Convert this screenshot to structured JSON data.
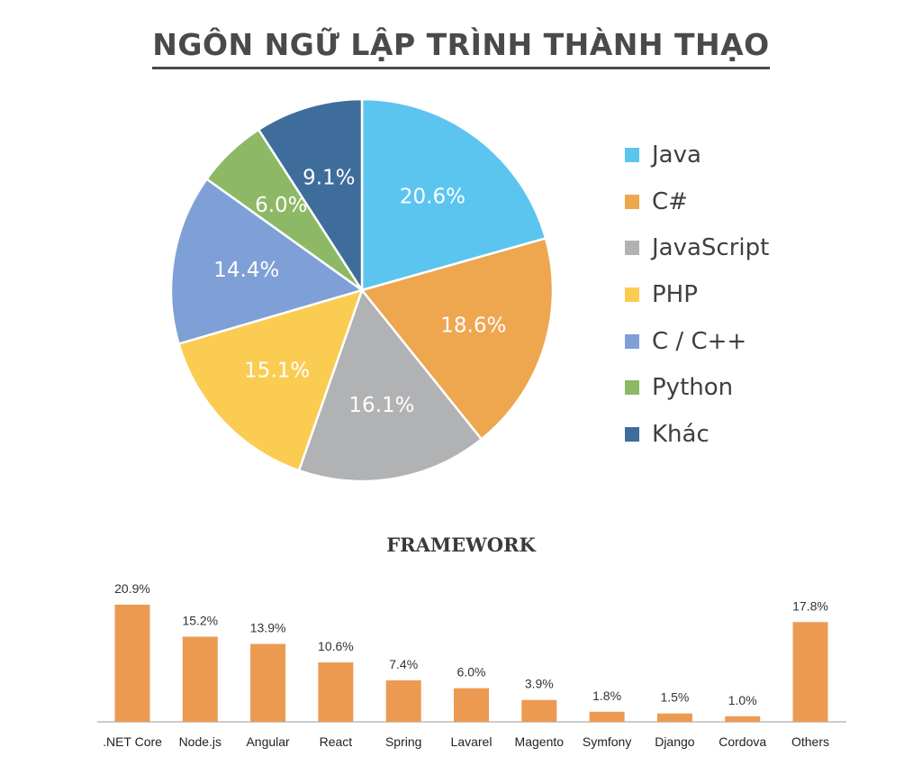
{
  "title": "NGÔN NGỮ LẬP TRÌNH THÀNH THẠO",
  "chart_data": [
    {
      "type": "pie",
      "title": "NGÔN NGỮ LẬP TRÌNH THÀNH THẠO",
      "legend_position": "right",
      "slices": [
        {
          "label": "Java",
          "value": 20.6,
          "display": "20.6%",
          "color": "#5bc5f0"
        },
        {
          "label": "C#",
          "value": 18.6,
          "display": "18.6%",
          "color": "#eea64f"
        },
        {
          "label": "JavaScript",
          "value": 16.1,
          "display": "16.1%",
          "color": "#b1b2b4"
        },
        {
          "label": "PHP",
          "value": 15.1,
          "display": "15.1%",
          "color": "#fbcc52"
        },
        {
          "label": "C / C++",
          "value": 14.4,
          "display": "14.4%",
          "color": "#7ea0d6"
        },
        {
          "label": "Python",
          "value": 6.0,
          "display": "6.0%",
          "color": "#8db865"
        },
        {
          "label": "Khác",
          "value": 9.1,
          "display": "9.1%",
          "color": "#3e6d9c"
        }
      ]
    },
    {
      "type": "bar",
      "title": "FRAMEWORK",
      "categories": [
        ".NET Core",
        "Node.js",
        "Angular",
        "React",
        "Spring",
        "Lavarel",
        "Magento",
        "Symfony",
        "Django",
        "Cordova",
        "Others"
      ],
      "values": [
        20.9,
        15.2,
        13.9,
        10.6,
        7.4,
        6.0,
        3.9,
        1.8,
        1.5,
        1.0,
        17.8
      ],
      "value_labels": [
        "20.9%",
        "15.2%",
        "13.9%",
        "10.6%",
        "7.4%",
        "6.0%",
        "3.9%",
        "1.8%",
        "1.5%",
        "1.0%",
        "17.8%"
      ],
      "color": "#ec9a52",
      "ylim": [
        0,
        20.9
      ]
    }
  ]
}
